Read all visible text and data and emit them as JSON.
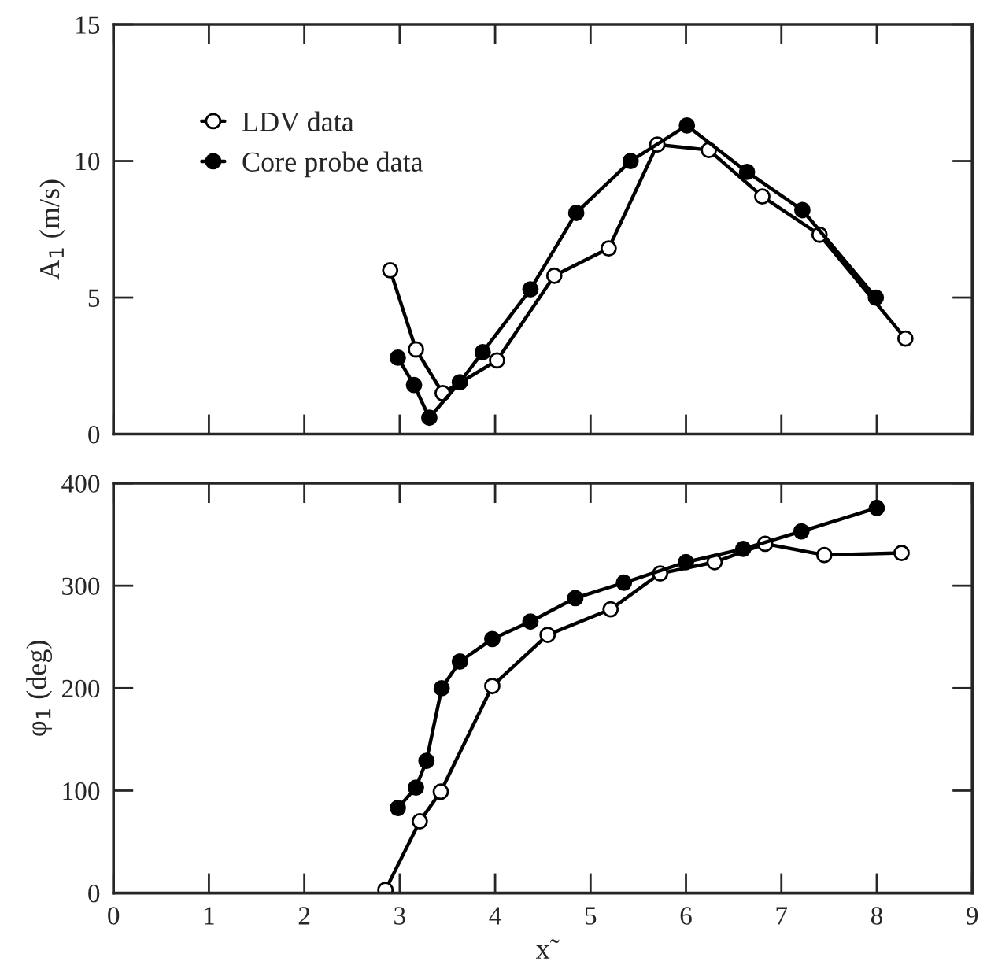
{
  "chart_data": [
    {
      "type": "line",
      "ylabel": "A$_{1}$ (m/s)",
      "xlim": [
        0,
        9
      ],
      "xticks": [
        0,
        1,
        2,
        3,
        4,
        5,
        6,
        7,
        8,
        9
      ],
      "ylim": [
        0,
        15
      ],
      "yticks": [
        0,
        5,
        10,
        15
      ],
      "tick_labels": "y",
      "legend": "top left",
      "marker": "circle",
      "line_style": "solid",
      "grid": false,
      "series": [
        {
          "name": "LDV data",
          "color": "#ffffff",
          "x": [
            2.9,
            3.17,
            3.45,
            4.02,
            4.62,
            5.19,
            5.7,
            6.24,
            6.8,
            7.4,
            8.3
          ],
          "values": [
            6.0,
            3.1,
            1.5,
            2.7,
            5.8,
            6.8,
            10.6,
            10.4,
            8.7,
            7.3,
            3.5
          ]
        },
        {
          "name": "Core probe data",
          "color": "#000000",
          "x": [
            2.98,
            3.15,
            3.31,
            3.63,
            3.87,
            4.37,
            4.85,
            5.42,
            6.01,
            6.64,
            7.22,
            7.99
          ],
          "values": [
            2.8,
            1.8,
            0.6,
            1.9,
            3.0,
            5.3,
            8.1,
            10.0,
            11.3,
            9.6,
            8.2,
            5.0
          ]
        }
      ]
    },
    {
      "type": "line",
      "ylabel": "φ$_{1}$ (deg)",
      "xlabel": "x̃",
      "xlim": [
        0,
        9
      ],
      "xticks": [
        0,
        1,
        2,
        3,
        4,
        5,
        6,
        7,
        8,
        9
      ],
      "ylim": [
        0,
        400
      ],
      "yticks": [
        0,
        100,
        200,
        300,
        400
      ],
      "marker": "circle",
      "line_style": "solid",
      "grid": false,
      "series": [
        {
          "color": "#ffffff",
          "x": [
            2.85,
            3.21,
            3.43,
            3.97,
            4.55,
            5.21,
            5.73,
            6.3,
            6.83,
            7.45,
            8.26
          ],
          "values": [
            3,
            70,
            99,
            202,
            252,
            277,
            312,
            323,
            341,
            330,
            332
          ]
        },
        {
          "color": "#000000",
          "x": [
            2.98,
            3.17,
            3.28,
            3.44,
            3.63,
            3.97,
            4.37,
            4.84,
            5.35,
            6.0,
            6.6,
            7.21,
            8.0
          ],
          "values": [
            83,
            103,
            129,
            200,
            226,
            248,
            265,
            288,
            303,
            323,
            336,
            353,
            376
          ]
        }
      ]
    }
  ]
}
